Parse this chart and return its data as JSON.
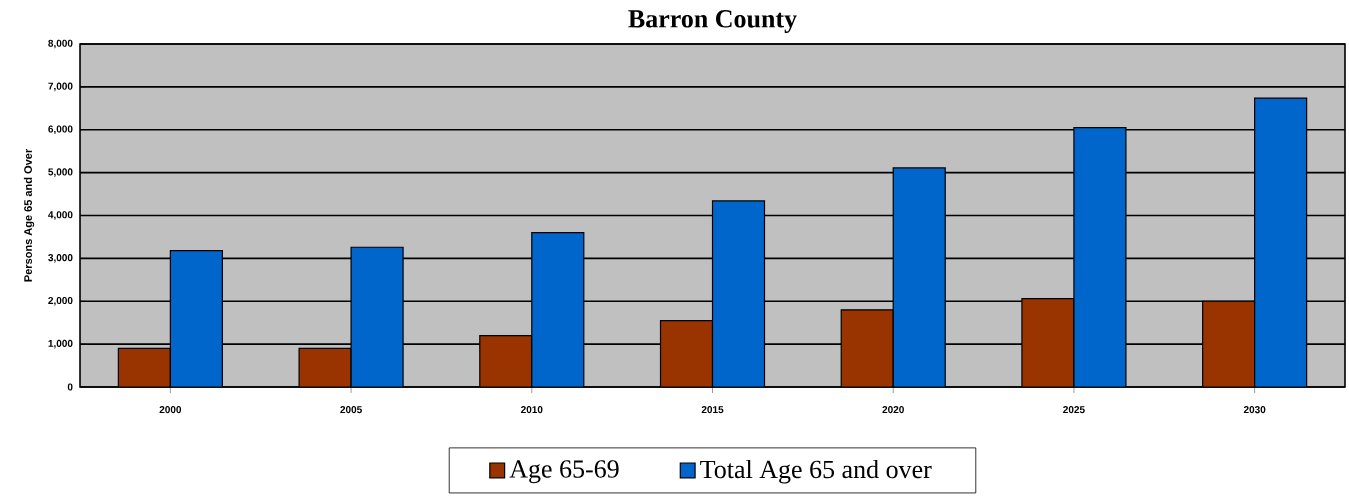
{
  "chart_data": {
    "type": "bar",
    "title": "Barron County",
    "ylabel": "Persons Age 65 and Over",
    "categories": [
      "2000",
      "2005",
      "2010",
      "2015",
      "2020",
      "2025",
      "2030"
    ],
    "series": [
      {
        "name": "Age 65-69",
        "color": "#993300",
        "values": [
          900,
          900,
          1200,
          1550,
          1800,
          2060,
          2000
        ]
      },
      {
        "name": "Total Age 65 and over",
        "color": "#0066cc",
        "values": [
          3180,
          3260,
          3600,
          4340,
          5110,
          6050,
          6740
        ]
      }
    ],
    "ylim": [
      0,
      8000
    ],
    "yticks": [
      {
        "value": 0,
        "label": "0"
      },
      {
        "value": 1000,
        "label": "1,000"
      },
      {
        "value": 2000,
        "label": "2,000"
      },
      {
        "value": 3000,
        "label": "3,000"
      },
      {
        "value": 4000,
        "label": "4,000"
      },
      {
        "value": 5000,
        "label": "5,000"
      },
      {
        "value": 6000,
        "label": "6,000"
      },
      {
        "value": 7000,
        "label": "7,000"
      },
      {
        "value": 8000,
        "label": "8,000"
      }
    ],
    "grid": "y",
    "legend": "bottom"
  }
}
